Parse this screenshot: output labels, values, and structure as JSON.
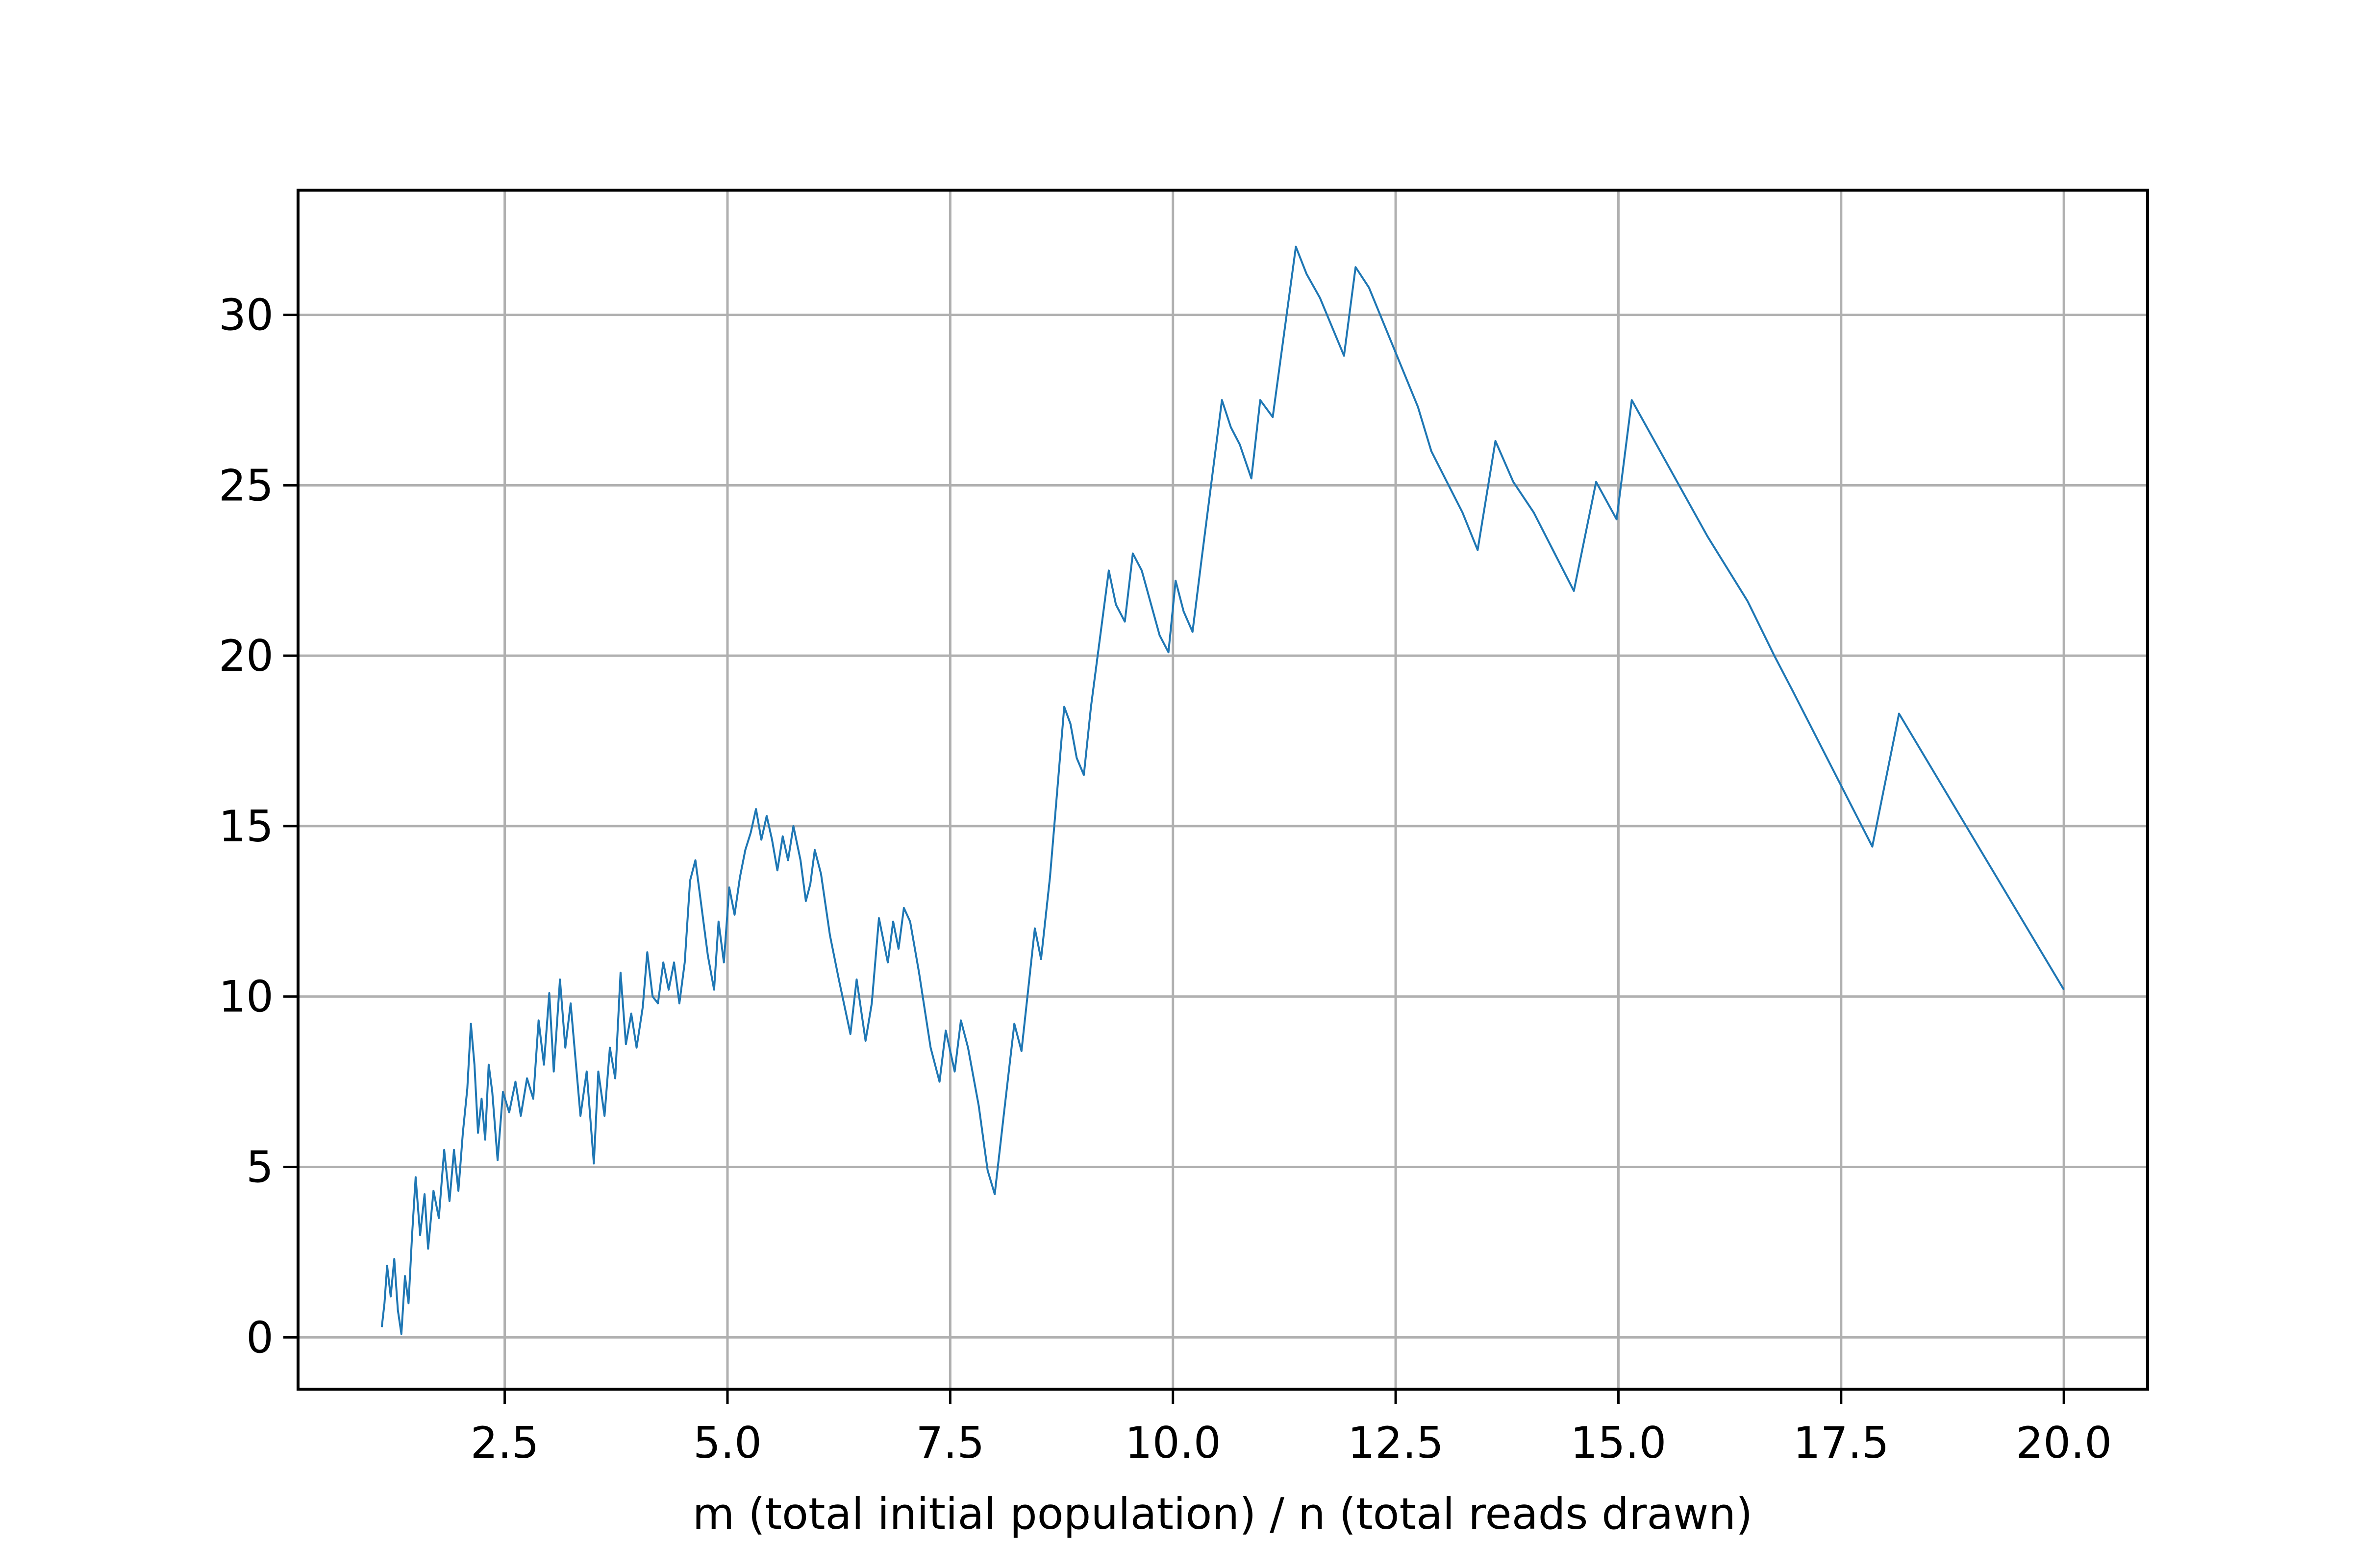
{
  "chart_data": {
    "type": "line",
    "xlabel": "m (total initial population) / n (total reads drawn)",
    "xlim": [
      0.18,
      20.94
    ],
    "ylim": [
      -1.52,
      33.66
    ],
    "xticks": [
      2.5,
      {
        "value": 5,
        "label": "5.0"
      },
      7.5,
      {
        "value": 10,
        "label": "10.0"
      },
      12.5,
      {
        "value": 15,
        "label": "15.0"
      },
      17.5,
      {
        "value": 20,
        "label": "20.0"
      }
    ],
    "yticks": [
      0,
      5,
      10,
      15,
      20,
      25,
      30
    ],
    "grid": true,
    "series": [
      {
        "color": "#1f77b4",
        "x": [
          1.12,
          1.15,
          1.18,
          1.22,
          1.26,
          1.3,
          1.34,
          1.38,
          1.42,
          1.46,
          1.5,
          1.55,
          1.6,
          1.64,
          1.7,
          1.76,
          1.82,
          1.88,
          1.93,
          1.98,
          2.03,
          2.08,
          2.12,
          2.16,
          2.2,
          2.24,
          2.28,
          2.32,
          2.36,
          2.42,
          2.48,
          2.55,
          2.62,
          2.68,
          2.75,
          2.82,
          2.88,
          2.94,
          3.0,
          3.05,
          3.12,
          3.18,
          3.24,
          3.3,
          3.35,
          3.42,
          3.5,
          3.55,
          3.62,
          3.68,
          3.74,
          3.8,
          3.86,
          3.92,
          3.98,
          4.05,
          4.1,
          4.16,
          4.22,
          4.28,
          4.34,
          4.4,
          4.46,
          4.52,
          4.58,
          4.64,
          4.7,
          4.78,
          4.85,
          4.9,
          4.96,
          5.02,
          5.08,
          5.14,
          5.2,
          5.26,
          5.32,
          5.38,
          5.44,
          5.5,
          5.56,
          5.62,
          5.68,
          5.74,
          5.82,
          5.88,
          5.93,
          5.98,
          6.05,
          6.15,
          6.25,
          6.38,
          6.45,
          6.55,
          6.62,
          6.7,
          6.8,
          6.86,
          6.92,
          6.98,
          7.05,
          7.15,
          7.28,
          7.38,
          7.45,
          7.55,
          7.62,
          7.7,
          7.82,
          7.92,
          8.0,
          8.1,
          8.22,
          8.3,
          8.45,
          8.52,
          8.62,
          8.78,
          8.85,
          8.92,
          9.0,
          9.08,
          9.28,
          9.36,
          9.46,
          9.55,
          9.65,
          9.85,
          9.95,
          10.03,
          10.12,
          10.22,
          10.32,
          10.55,
          10.65,
          10.75,
          10.88,
          10.98,
          11.12,
          11.38,
          11.5,
          11.65,
          11.92,
          12.05,
          12.2,
          12.75,
          12.9,
          13.25,
          13.42,
          13.62,
          13.82,
          14.05,
          14.5,
          14.75,
          14.98,
          15.15,
          16.0,
          16.45,
          16.75,
          16.95,
          17.85,
          18.15,
          19.2,
          20.0
        ],
        "values": [
          0.3,
          1.0,
          2.1,
          1.2,
          2.3,
          0.8,
          0.1,
          1.8,
          1.0,
          3.0,
          4.7,
          3.0,
          4.2,
          2.6,
          4.3,
          3.5,
          5.5,
          4.0,
          5.5,
          4.3,
          6.0,
          7.3,
          9.2,
          8.0,
          6.0,
          7.0,
          5.8,
          8.0,
          7.2,
          5.2,
          7.2,
          6.6,
          7.5,
          6.5,
          7.6,
          7.0,
          9.3,
          8.0,
          10.1,
          7.8,
          10.5,
          8.5,
          9.8,
          8.0,
          6.5,
          7.8,
          5.1,
          7.8,
          6.5,
          8.5,
          7.6,
          10.7,
          8.6,
          9.5,
          8.5,
          9.7,
          11.3,
          10.0,
          9.8,
          11.0,
          10.2,
          11.0,
          9.8,
          11.0,
          13.4,
          14.0,
          12.8,
          11.2,
          10.2,
          12.2,
          11.0,
          13.2,
          12.4,
          13.5,
          14.3,
          14.8,
          15.5,
          14.6,
          15.3,
          14.6,
          13.7,
          14.7,
          14.0,
          15.0,
          14.0,
          12.8,
          13.3,
          14.3,
          13.6,
          11.8,
          10.5,
          8.9,
          10.5,
          8.7,
          9.8,
          12.3,
          11.0,
          12.2,
          11.4,
          12.6,
          12.2,
          10.7,
          8.5,
          7.5,
          9.0,
          7.8,
          9.3,
          8.5,
          6.8,
          4.9,
          4.2,
          6.5,
          9.2,
          8.4,
          12.0,
          11.1,
          13.5,
          18.5,
          18.0,
          17.0,
          16.5,
          18.5,
          22.5,
          21.5,
          21.0,
          23.0,
          22.5,
          20.6,
          20.1,
          22.2,
          21.3,
          20.7,
          22.8,
          27.5,
          26.7,
          26.2,
          25.2,
          27.5,
          27.0,
          32.0,
          31.2,
          30.5,
          28.8,
          31.4,
          30.8,
          27.3,
          26.0,
          24.2,
          23.1,
          26.3,
          25.1,
          24.2,
          21.9,
          25.1,
          24.0,
          27.5,
          23.5,
          21.6,
          20.0,
          19.0,
          14.4,
          18.3,
          13.7,
          10.2
        ]
      }
    ]
  }
}
